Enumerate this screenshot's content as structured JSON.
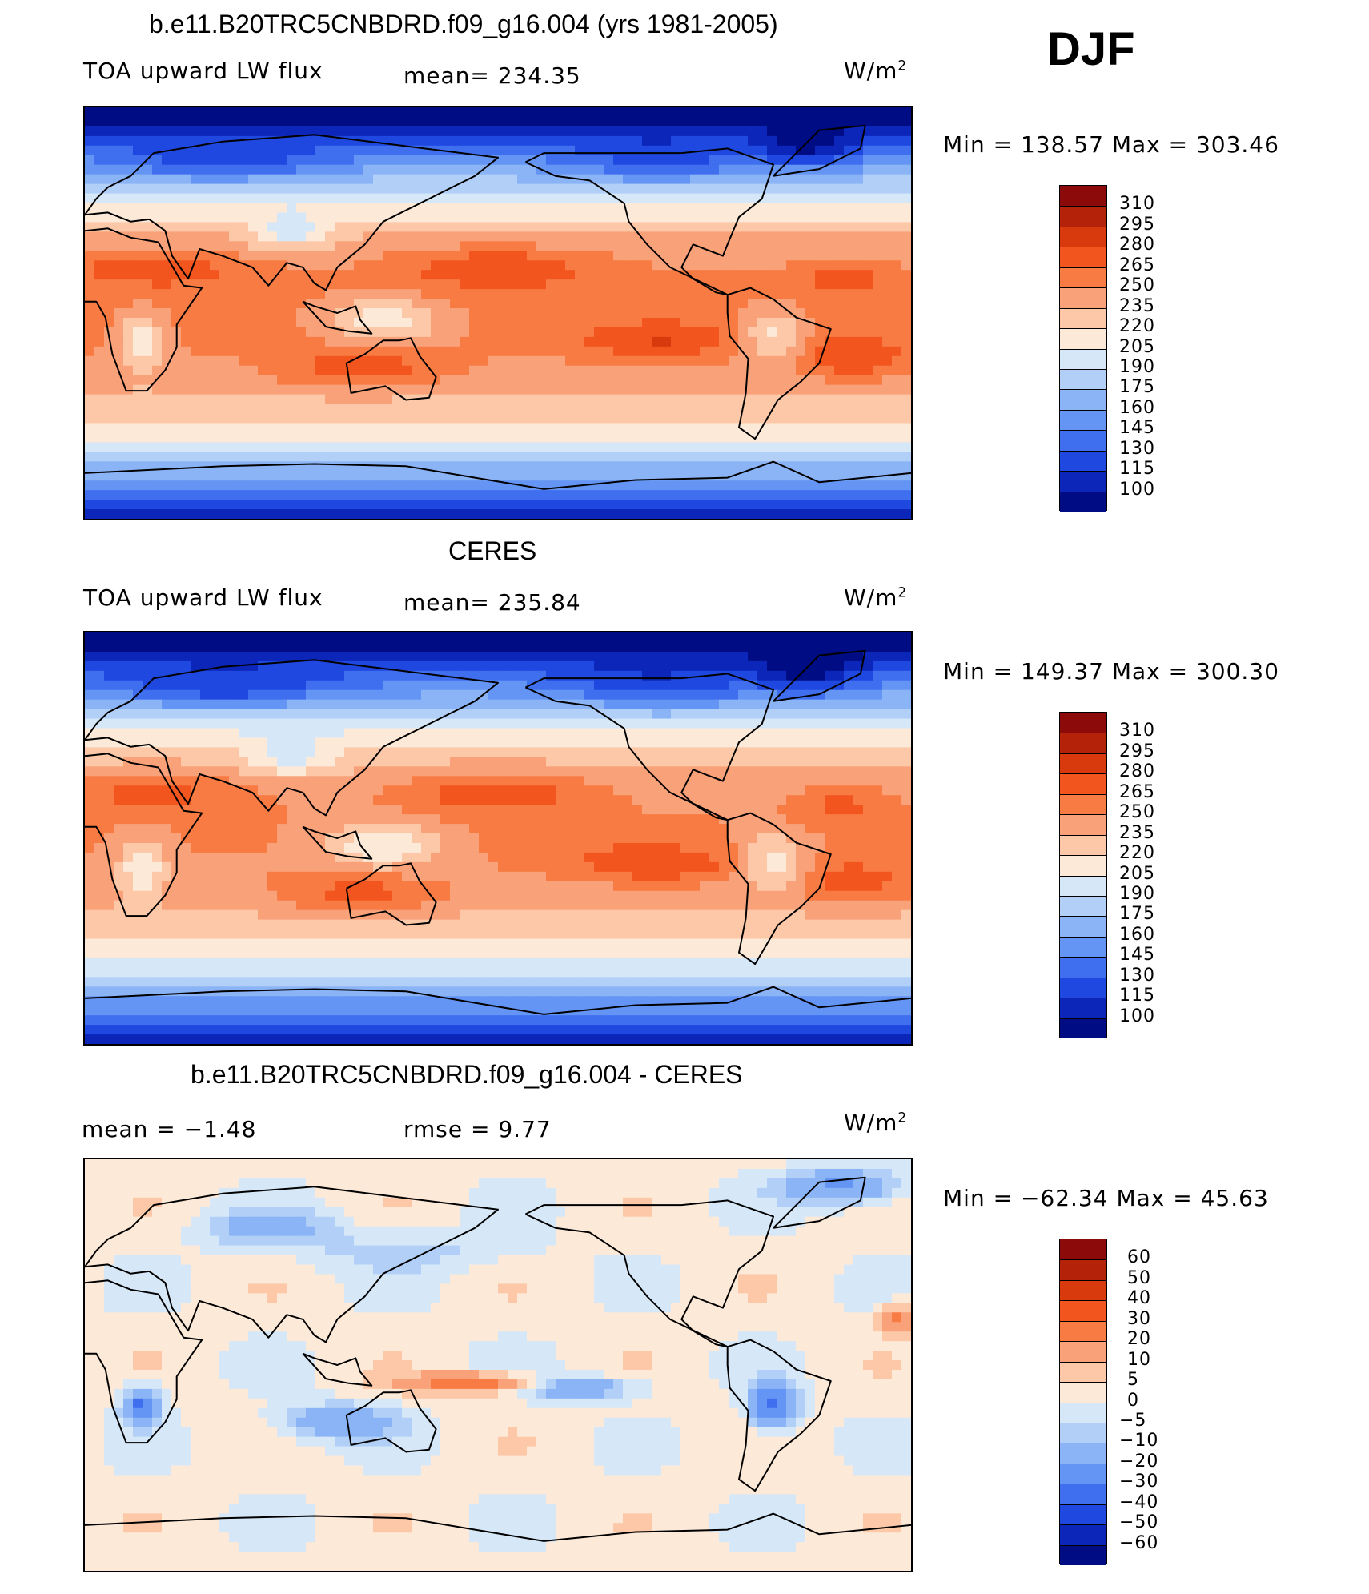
{
  "season": "DJF",
  "units_label": "W/m",
  "units_exp": "2",
  "panels": [
    {
      "title": "b.e11.B20TRC5CNBDRD.f09_g16.004 (yrs 1981-2005)",
      "left_label": "TOA upward LW flux",
      "center_label": "mean= 234.35",
      "minmax": "Min  =  138.57  Max  =  303.46"
    },
    {
      "title": "CERES",
      "left_label": "TOA upward LW flux",
      "center_label": "mean= 235.84",
      "minmax": "Min  =  149.37  Max  =  300.30"
    },
    {
      "title": "b.e11.B20TRC5CNBDRD.f09_g16.004 - CERES",
      "left_label": "mean =    −1.48",
      "center_label": "rmse =     9.77",
      "minmax": "Min  =  −62.34  Max  =    45.63"
    }
  ],
  "colorbars": {
    "flux": {
      "labels": [
        "310",
        "295",
        "280",
        "265",
        "250",
        "235",
        "220",
        "205",
        "190",
        "175",
        "160",
        "145",
        "130",
        "115",
        "100"
      ],
      "colors": [
        "#8c0a0a",
        "#b5220a",
        "#d83a0d",
        "#f2551e",
        "#f77b43",
        "#f9a178",
        "#fcc8a8",
        "#fde9d7",
        "#d6e8f8",
        "#b2d0f7",
        "#8bb4f6",
        "#6595f4",
        "#3f6fef",
        "#1f48e0",
        "#0b26b8",
        "#000c84"
      ]
    },
    "diff": {
      "labels": [
        "60",
        "50",
        "40",
        "30",
        "20",
        "10",
        "5",
        "0",
        "−5",
        "−10",
        "−20",
        "−30",
        "−40",
        "−50",
        "−60"
      ],
      "colors": [
        "#8c0a0a",
        "#b5220a",
        "#d83a0d",
        "#f2551e",
        "#f77b43",
        "#f9a178",
        "#fcc8a8",
        "#fde9d7",
        "#d6e8f8",
        "#b2d0f7",
        "#8bb4f6",
        "#6595f4",
        "#3f6fef",
        "#1f48e0",
        "#0b26b8",
        "#000c84"
      ]
    }
  },
  "chart_data": [
    {
      "type": "heatmap",
      "title": "b.e11.B20TRC5CNBDRD.f09_g16.004 (yrs 1981-2005)",
      "field": "TOA upward LW flux",
      "units": "W/m2",
      "mean": 234.35,
      "min": 138.57,
      "max": 303.46,
      "levels": [
        100,
        115,
        130,
        145,
        160,
        175,
        190,
        205,
        220,
        235,
        250,
        265,
        280,
        295,
        310
      ]
    },
    {
      "type": "heatmap",
      "title": "CERES",
      "field": "TOA upward LW flux",
      "units": "W/m2",
      "mean": 235.84,
      "min": 149.37,
      "max": 300.3,
      "levels": [
        100,
        115,
        130,
        145,
        160,
        175,
        190,
        205,
        220,
        235,
        250,
        265,
        280,
        295,
        310
      ]
    },
    {
      "type": "heatmap",
      "title": "b.e11.B20TRC5CNBDRD.f09_g16.004 - CERES",
      "units": "W/m2",
      "mean": -1.48,
      "rmse": 9.77,
      "min": -62.34,
      "max": 45.63,
      "levels": [
        -60,
        -50,
        -40,
        -30,
        -20,
        -10,
        -5,
        0,
        5,
        10,
        20,
        30,
        40,
        50,
        60
      ]
    }
  ]
}
